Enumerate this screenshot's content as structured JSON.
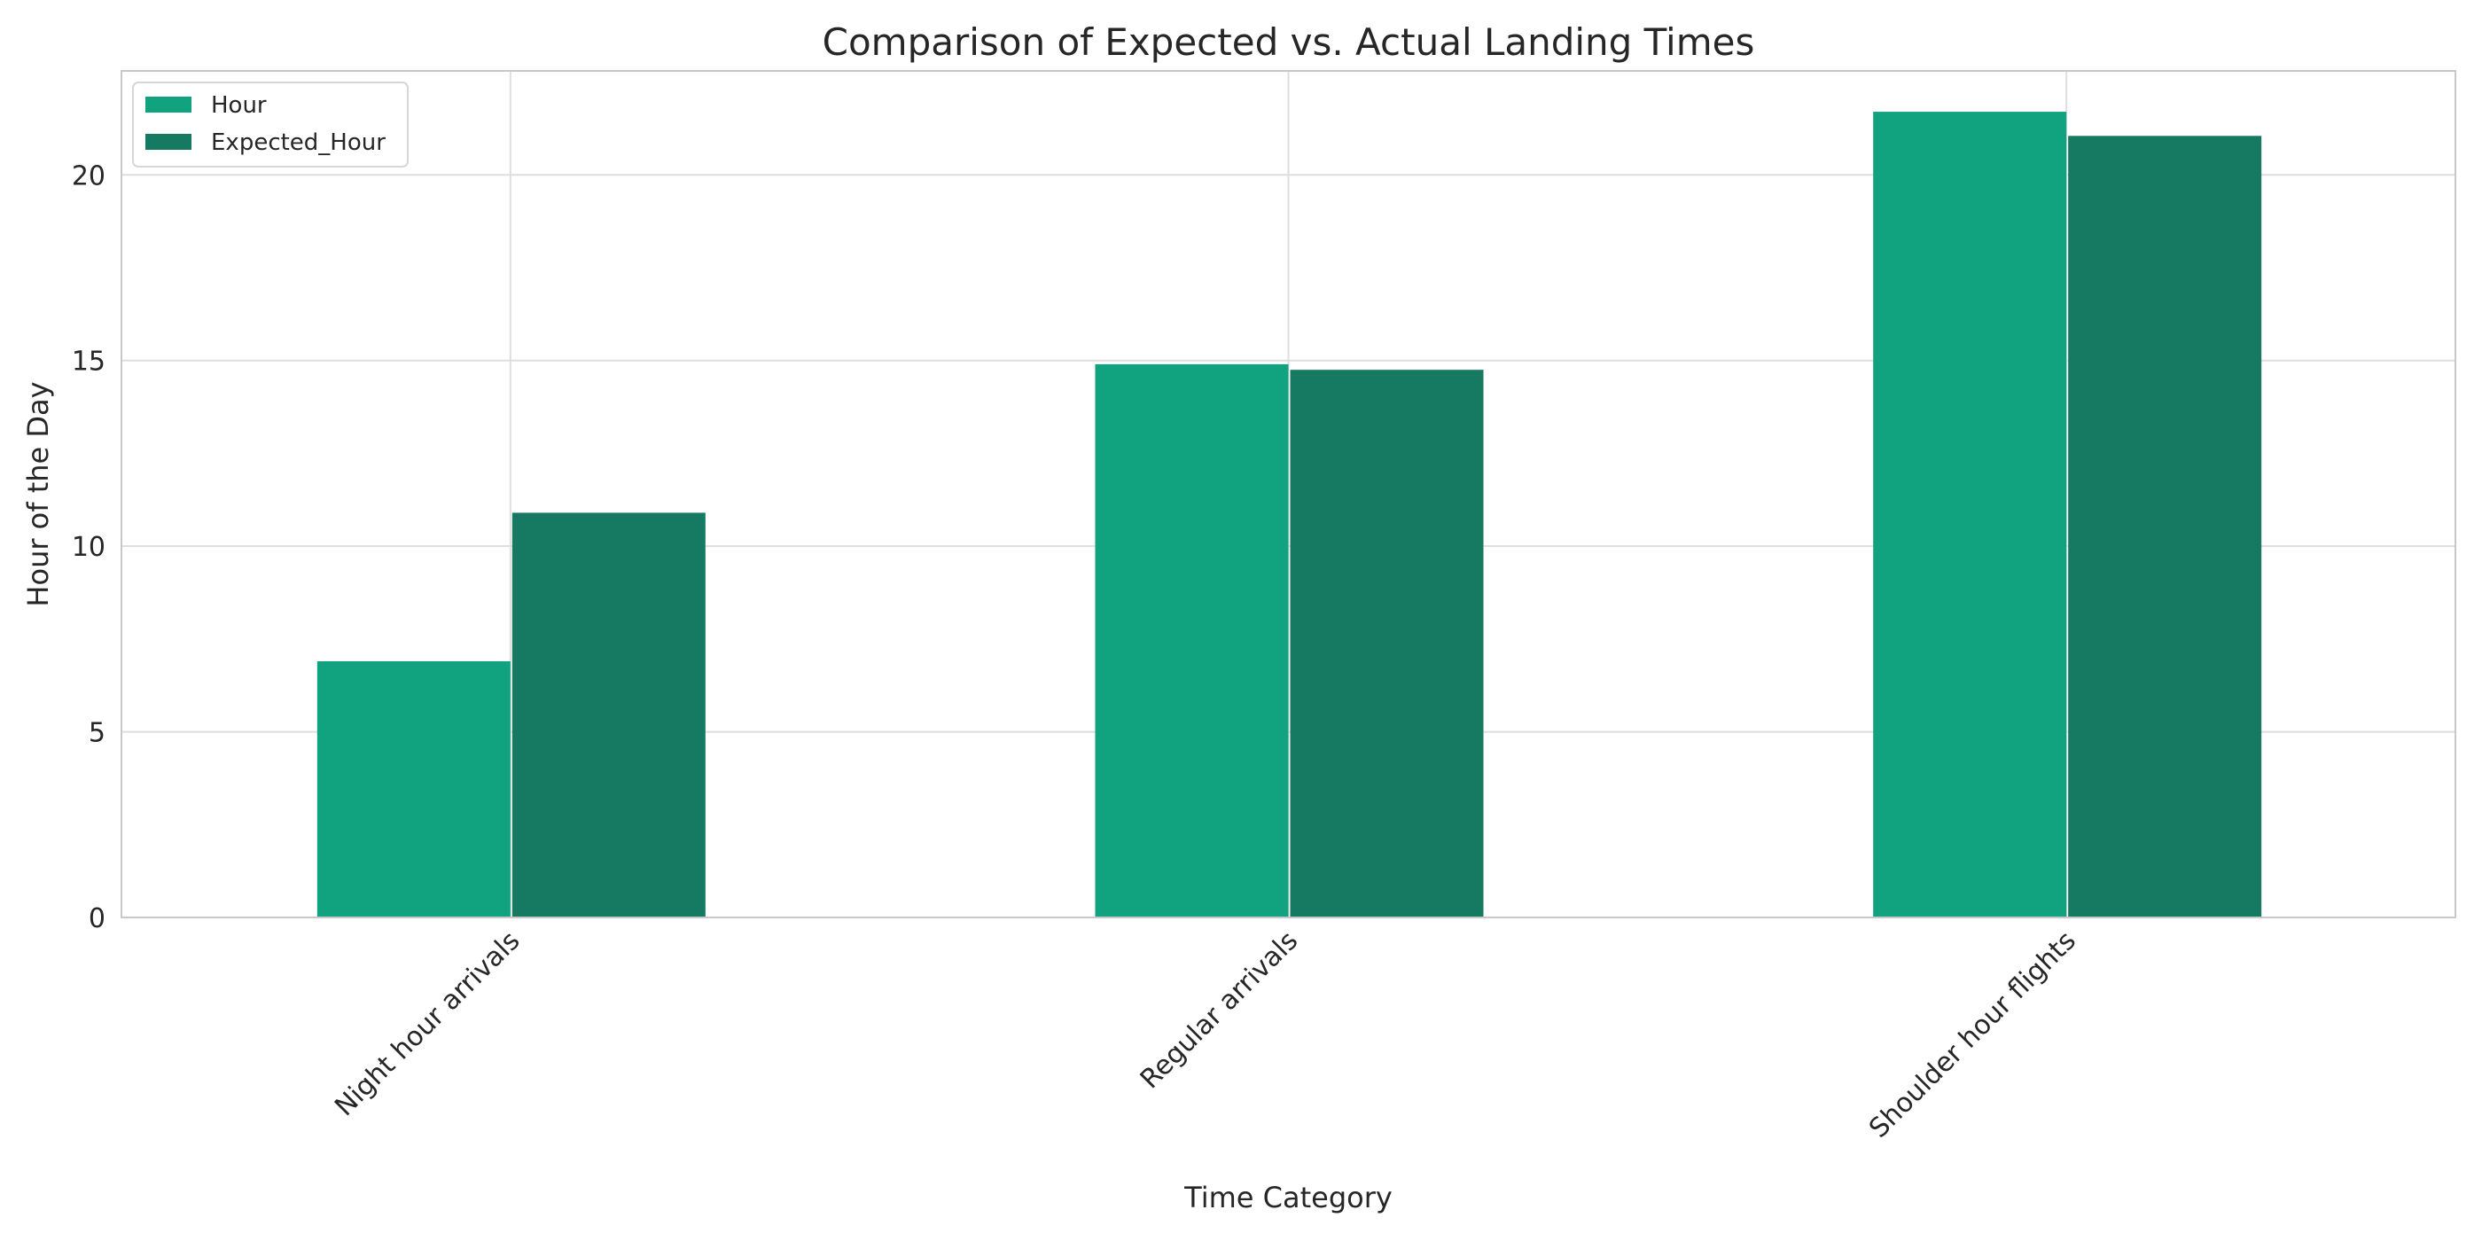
{
  "chart_data": {
    "type": "bar",
    "title": "Comparison of Expected vs. Actual Landing Times",
    "xlabel": "Time Category",
    "ylabel": "Hour of the Day",
    "categories": [
      "Night hour arrivals",
      "Regular arrivals",
      "Shoulder hour flights"
    ],
    "series": [
      {
        "name": "Hour",
        "values": [
          6.9,
          14.9,
          21.7
        ],
        "color": "#11a37f"
      },
      {
        "name": "Expected_Hour",
        "values": [
          10.9,
          14.75,
          21.05
        ],
        "color": "#167a62"
      }
    ],
    "ylim": [
      0,
      22.8
    ],
    "yticks": [
      0,
      5,
      10,
      15,
      20
    ],
    "grid": true,
    "legend": "top-left",
    "xtick_rotation": "45 degrees"
  }
}
